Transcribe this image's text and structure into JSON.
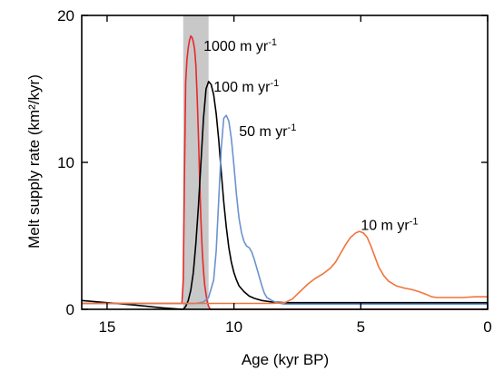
{
  "chart_data": {
    "type": "line",
    "xlabel": "Age (kyr BP)",
    "ylabel": "Melt supply rate (km²/kyr)",
    "xlim": [
      16,
      0
    ],
    "ylim": [
      0,
      20
    ],
    "x_reversed": true,
    "x_ticks": [
      15,
      10,
      5,
      0
    ],
    "y_ticks": [
      0,
      10,
      20
    ],
    "grid": false,
    "shaded_band": {
      "x": [
        12,
        11
      ],
      "color": "#c8c8c8"
    },
    "series": [
      {
        "name": "1000 m yr",
        "name_superscript": "-1",
        "color": "#e8282b",
        "label_at": [
          11.2,
          17.6
        ],
        "x": [
          16,
          12.05,
          12.0,
          11.95,
          11.9,
          11.85,
          11.8,
          11.75,
          11.7,
          11.65,
          11.6,
          11.55,
          11.5,
          11.45,
          11.4,
          11.35,
          11.3,
          11.25,
          11.2,
          11.15,
          11.1,
          11.05,
          11.0,
          10.95,
          10.9,
          0
        ],
        "y": [
          0.4,
          0.4,
          2.0,
          9.0,
          15.5,
          17.0,
          17.8,
          18.3,
          18.6,
          18.5,
          18.2,
          17.7,
          16.6,
          14.5,
          11.8,
          8.8,
          6.0,
          4.0,
          2.6,
          1.6,
          1.0,
          0.5,
          0.2,
          0.05,
          0.0,
          0.0
        ]
      },
      {
        "name": "100 m yr",
        "name_superscript": "-1",
        "color": "#000000",
        "label_at": [
          10.8,
          14.8
        ],
        "x": [
          16,
          14,
          12.8,
          12.2,
          12.0,
          11.9,
          11.8,
          11.7,
          11.6,
          11.5,
          11.4,
          11.3,
          11.2,
          11.1,
          11.0,
          10.9,
          10.8,
          10.7,
          10.6,
          10.5,
          10.4,
          10.3,
          10.2,
          10.1,
          10.0,
          9.9,
          9.8,
          9.6,
          9.4,
          9.2,
          8.9,
          8.5,
          8.0,
          0
        ],
        "y": [
          0.6,
          0.3,
          0.1,
          0.02,
          0.0,
          0.2,
          0.6,
          1.3,
          2.5,
          4.5,
          7.0,
          10.0,
          13.0,
          15.0,
          15.5,
          15.3,
          14.6,
          13.3,
          11.5,
          9.3,
          7.3,
          5.6,
          4.2,
          3.2,
          2.5,
          2.0,
          1.6,
          1.2,
          0.9,
          0.75,
          0.6,
          0.5,
          0.45,
          0.45
        ]
      },
      {
        "name": "50 m yr",
        "name_superscript": "-1",
        "color": "#6a93cf",
        "label_at": [
          9.8,
          11.8
        ],
        "x": [
          16,
          11.5,
          11.2,
          11.0,
          10.8,
          10.7,
          10.6,
          10.5,
          10.4,
          10.3,
          10.2,
          10.1,
          10.0,
          9.9,
          9.8,
          9.7,
          9.6,
          9.5,
          9.4,
          9.3,
          9.2,
          9.1,
          9.0,
          8.9,
          8.8,
          8.7,
          8.5,
          8.3,
          8.0,
          0
        ],
        "y": [
          0.4,
          0.4,
          0.5,
          0.8,
          2.0,
          4.0,
          7.5,
          11.0,
          13.0,
          13.2,
          12.8,
          11.6,
          9.8,
          7.8,
          6.2,
          5.2,
          4.6,
          4.3,
          4.2,
          3.9,
          3.4,
          2.8,
          2.2,
          1.6,
          1.1,
          0.8,
          0.6,
          0.45,
          0.35,
          0.35
        ]
      },
      {
        "name": "10 m yr",
        "name_superscript": "-1",
        "color": "#f0743c",
        "label_at": [
          5.0,
          5.4
        ],
        "x": [
          16,
          9.0,
          8.5,
          8.0,
          7.7,
          7.4,
          7.1,
          6.8,
          6.5,
          6.2,
          6.0,
          5.8,
          5.6,
          5.4,
          5.2,
          5.05,
          4.9,
          4.75,
          4.6,
          4.45,
          4.3,
          4.1,
          3.9,
          3.6,
          3.3,
          3.0,
          2.7,
          2.4,
          2.2,
          2.0,
          1.5,
          1.0,
          0.5,
          0
        ],
        "y": [
          0.4,
          0.4,
          0.4,
          0.45,
          0.7,
          1.2,
          1.7,
          2.1,
          2.4,
          2.8,
          3.2,
          3.8,
          4.4,
          4.9,
          5.2,
          5.3,
          5.2,
          4.9,
          4.3,
          3.6,
          2.9,
          2.3,
          1.9,
          1.6,
          1.45,
          1.35,
          1.2,
          1.0,
          0.85,
          0.8,
          0.8,
          0.8,
          0.85,
          0.85
        ]
      }
    ]
  }
}
